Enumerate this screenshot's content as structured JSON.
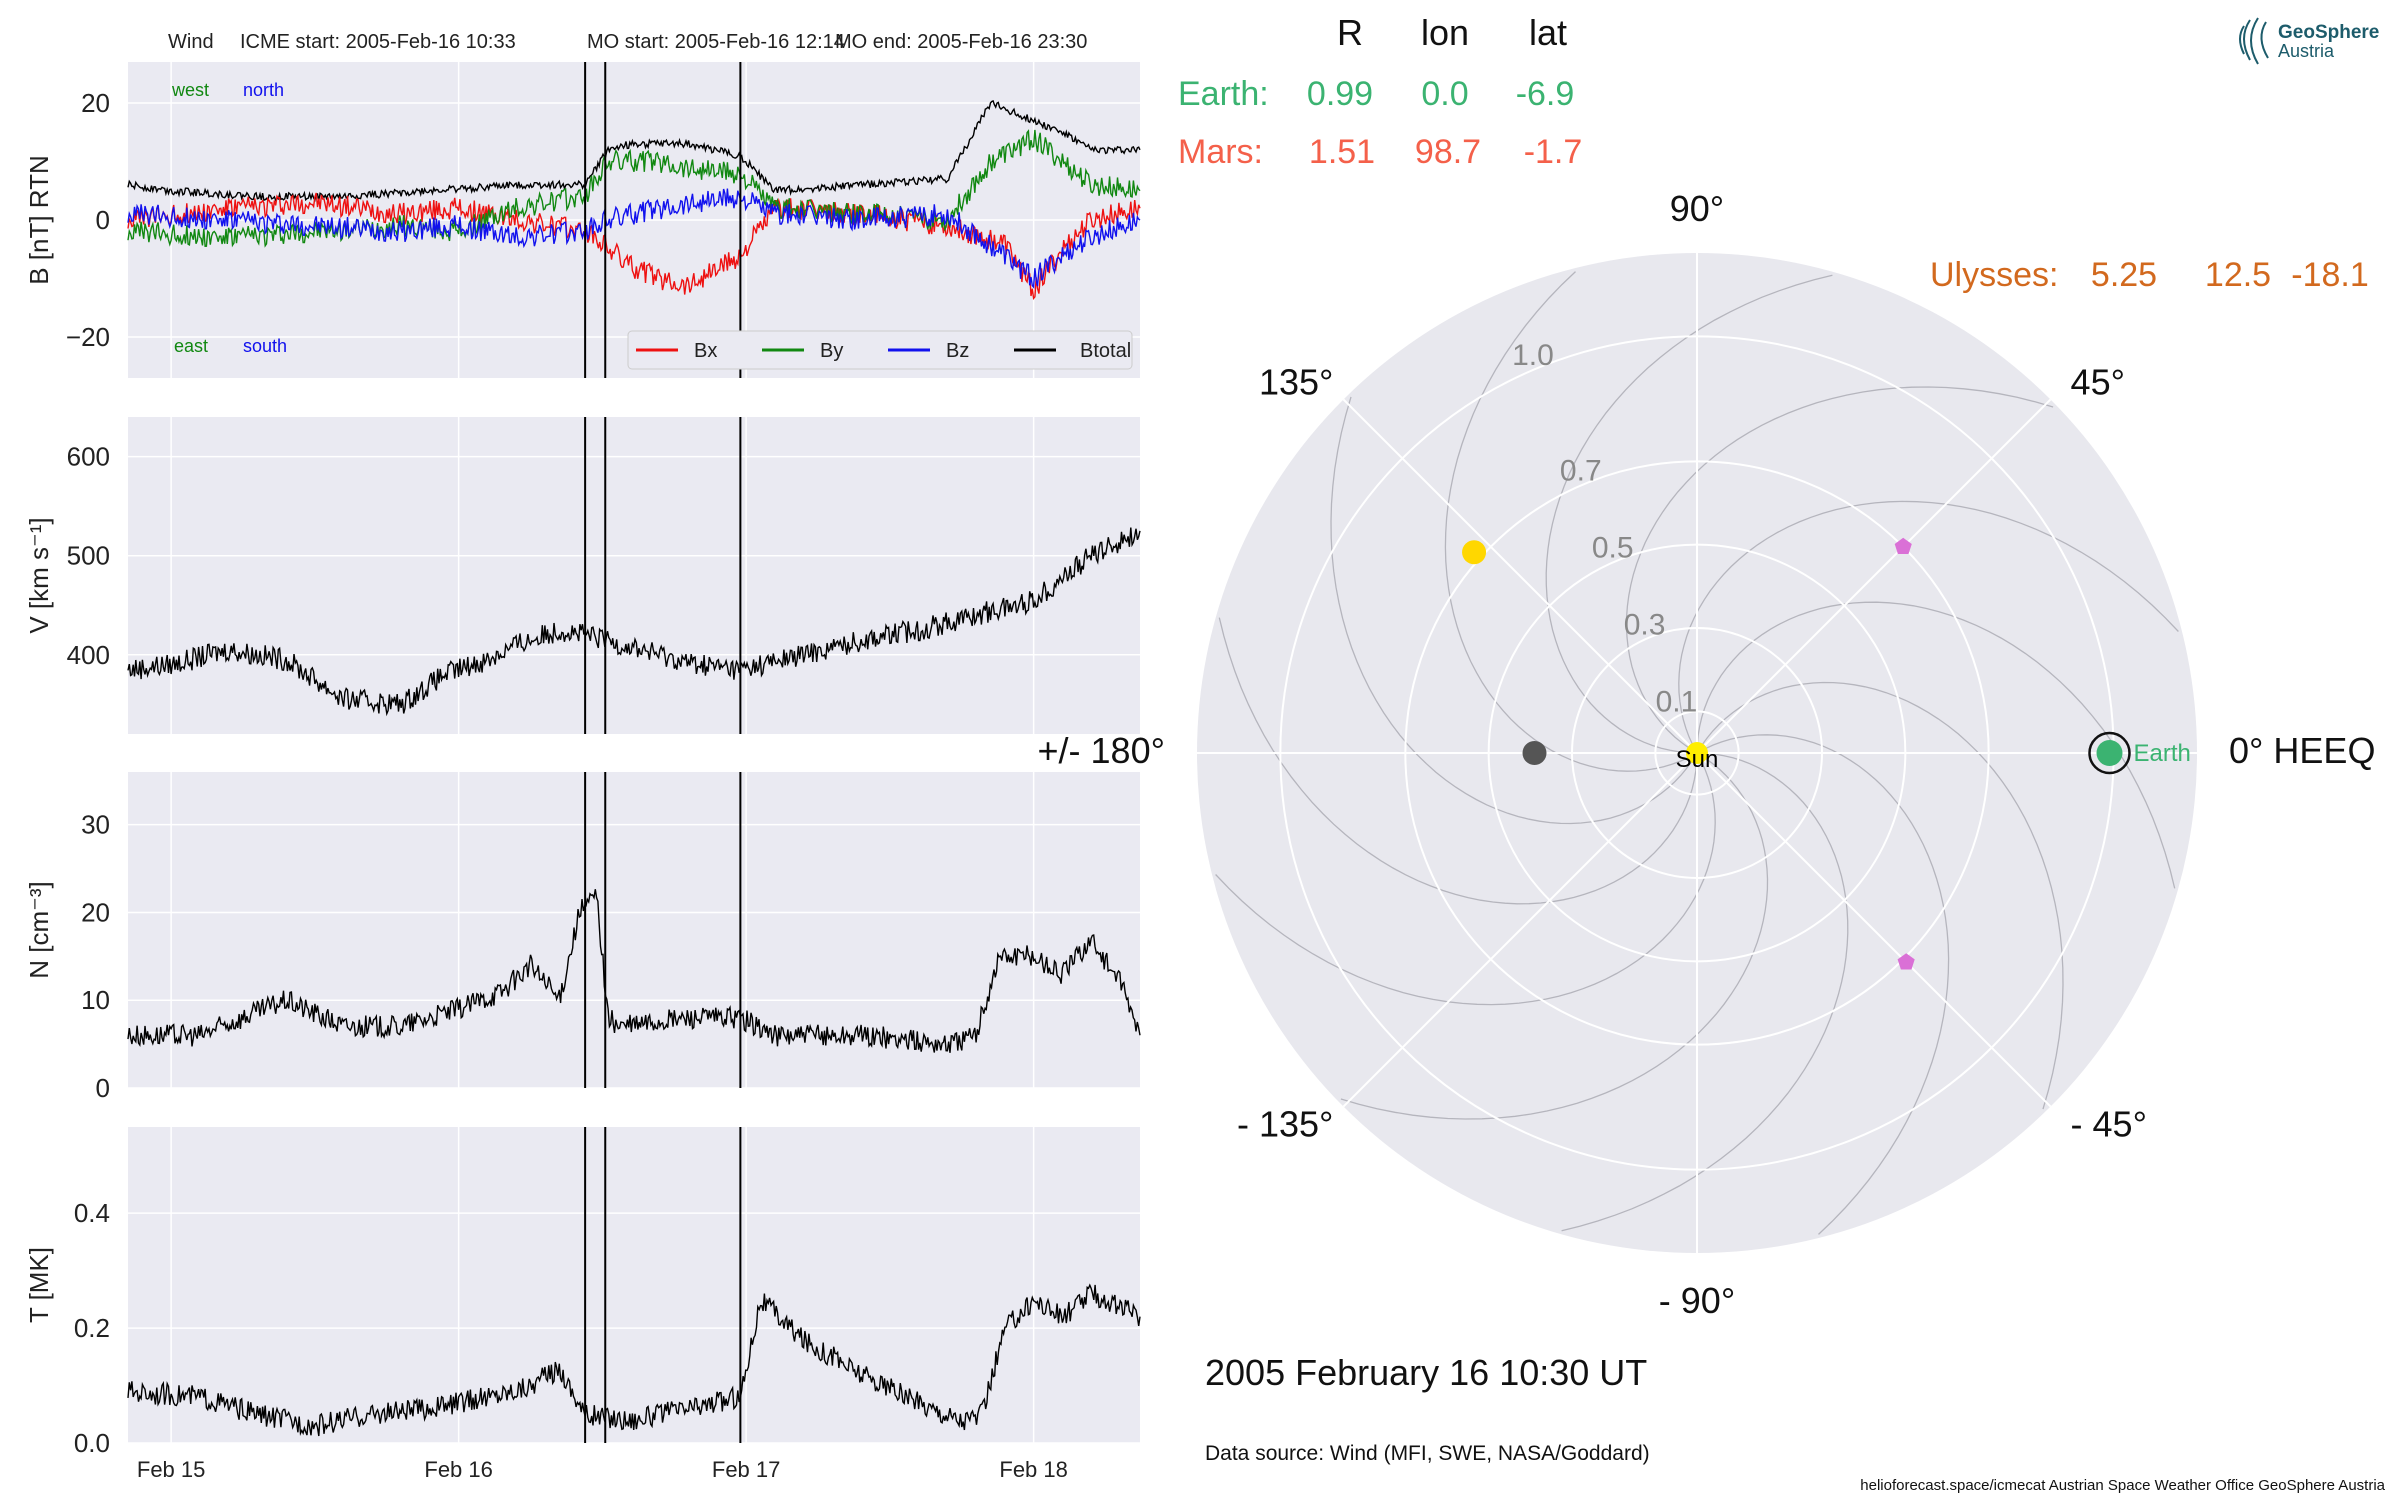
{
  "header": {
    "spacecraft": "Wind",
    "icme_start": "ICME start: 2005-Feb-16 10:33",
    "mo_start": "MO start: 2005-Feb-16 12:14",
    "mo_end": "MO end: 2005-Feb-16 23:30"
  },
  "logo": {
    "line1": "GeoSphere",
    "line2": "Austria"
  },
  "positions": {
    "columns": [
      "R",
      "lon",
      "lat"
    ],
    "rows": [
      {
        "name": "Earth:",
        "R": "0.99",
        "lon": "0.0",
        "lat": "-6.9",
        "color": "#3bb371"
      },
      {
        "name": "Mars:",
        "R": "1.51",
        "lon": "98.7",
        "lat": "-1.7",
        "color": "#f4604a"
      },
      {
        "name": "Ulysses:",
        "R": "5.25",
        "lon": "12.5",
        "lat": "-18.1",
        "color": "#d2691e"
      }
    ]
  },
  "polar": {
    "angle_labels": [
      "90°",
      "45°",
      "0° HEEQ",
      "- 45°",
      "- 90°",
      "- 135°",
      "+/- 180°",
      "135°"
    ],
    "radial_ticks": [
      "0.1",
      "0.3",
      "0.5",
      "0.7",
      "1.0"
    ],
    "sun_label": "Sun",
    "earth_label": "Earth",
    "datetime": "2005 February 16  10:30 UT",
    "data_source": "Data source: Wind (MFI, SWE, NASA/Goddard)",
    "objects": [
      {
        "name": "Sun",
        "lon_deg": 0,
        "r": 0.0,
        "color": "#ffee00"
      },
      {
        "name": "Earth",
        "lon_deg": 0,
        "r": 0.99,
        "color": "#3bb371"
      },
      {
        "name": "Venus",
        "lon_deg": 138,
        "r": 0.72,
        "color": "#ffd700"
      },
      {
        "name": "Mercury",
        "lon_deg": 180,
        "r": 0.39,
        "color": "#555555"
      },
      {
        "name": "spacecraft-a",
        "lon_deg": 45,
        "r": 0.7,
        "color": "#da70d6"
      },
      {
        "name": "spacecraft-b",
        "lon_deg": -45,
        "r": 0.71,
        "color": "#da70d6"
      }
    ]
  },
  "footer": "helioforecast.space/icmecat   Austrian Space Weather Office   GeoSphere Austria",
  "chart_data": [
    {
      "type": "line",
      "ylabel": "B [nT] RTN",
      "ylim": [
        -27,
        27
      ],
      "yticks": [
        -20,
        0,
        20
      ],
      "xlim": [
        -0.15,
        3.37
      ],
      "xticks": [
        "Feb 15",
        "Feb 16",
        "Feb 17",
        "Feb 18"
      ],
      "vlines": [
        1.44,
        1.51,
        1.98
      ],
      "corner_labels": {
        "west": "west",
        "north": "north",
        "east": "east",
        "south": "south"
      },
      "legend": [
        "Bx",
        "By",
        "Bz",
        "Btotal"
      ],
      "series": [
        {
          "name": "Btotal",
          "color": "#000000",
          "x": [
            -0.15,
            0.0,
            0.3,
            0.6,
            0.9,
            1.2,
            1.4,
            1.44,
            1.52,
            1.6,
            1.8,
            1.98,
            2.1,
            2.4,
            2.7,
            2.85,
            3.0,
            3.1,
            3.2,
            3.37
          ],
          "y": [
            6,
            5,
            4,
            4,
            5,
            6,
            6,
            6,
            12,
            13,
            13,
            11,
            5,
            6,
            7,
            20,
            17,
            15,
            12,
            12
          ]
        },
        {
          "name": "Bx",
          "color": "#ee1111",
          "x": [
            -0.15,
            0.2,
            0.5,
            0.8,
            1.0,
            1.2,
            1.44,
            1.5,
            1.6,
            1.7,
            1.8,
            1.98,
            2.1,
            2.4,
            2.7,
            2.9,
            3.0,
            3.1,
            3.2,
            3.37
          ],
          "y": [
            0,
            2,
            3,
            1,
            2,
            0,
            -2,
            -4,
            -8,
            -10,
            -11,
            -6,
            2,
            1,
            -1,
            -4,
            -12,
            -5,
            0,
            2
          ]
        },
        {
          "name": "By",
          "color": "#118811",
          "x": [
            -0.15,
            0.2,
            0.5,
            0.8,
            1.0,
            1.2,
            1.44,
            1.52,
            1.7,
            1.8,
            1.98,
            2.1,
            2.4,
            2.7,
            2.85,
            3.0,
            3.1,
            3.2,
            3.37
          ],
          "y": [
            -2,
            -3,
            -2,
            -1,
            -2,
            2,
            4,
            10,
            10,
            9,
            8,
            2,
            1,
            0,
            10,
            14,
            10,
            6,
            5
          ]
        },
        {
          "name": "Bz",
          "color": "#1111ee",
          "x": [
            -0.15,
            0.2,
            0.5,
            0.8,
            1.0,
            1.2,
            1.44,
            1.52,
            1.7,
            1.8,
            1.98,
            2.1,
            2.4,
            2.7,
            2.9,
            3.0,
            3.1,
            3.2,
            3.37
          ],
          "y": [
            1,
            0,
            -1,
            -2,
            -1,
            -3,
            -2,
            0,
            2,
            3,
            4,
            1,
            0,
            1,
            -6,
            -10,
            -6,
            -3,
            0
          ]
        }
      ]
    },
    {
      "type": "line",
      "ylabel": "V [km s⁻¹]",
      "ylim": [
        320,
        640
      ],
      "yticks": [
        400,
        500,
        600
      ],
      "xlim": [
        -0.15,
        3.37
      ],
      "vlines": [
        1.44,
        1.51,
        1.98
      ],
      "series": [
        {
          "name": "V",
          "color": "#000000",
          "x": [
            -0.15,
            0.0,
            0.2,
            0.4,
            0.5,
            0.6,
            0.8,
            0.95,
            1.1,
            1.2,
            1.35,
            1.44,
            1.6,
            1.8,
            1.98,
            2.2,
            2.45,
            2.6,
            2.8,
            3.0,
            3.2,
            3.37
          ],
          "y": [
            385,
            390,
            405,
            395,
            375,
            355,
            350,
            380,
            395,
            410,
            425,
            420,
            408,
            392,
            385,
            400,
            418,
            425,
            440,
            455,
            500,
            525
          ]
        }
      ]
    },
    {
      "type": "line",
      "ylabel": "N [cm⁻³]",
      "ylim": [
        0,
        36
      ],
      "yticks": [
        0,
        10,
        20,
        30
      ],
      "xlim": [
        -0.15,
        3.37
      ],
      "vlines": [
        1.44,
        1.51,
        1.98
      ],
      "series": [
        {
          "name": "N",
          "color": "#000000",
          "x": [
            -0.15,
            0.1,
            0.25,
            0.4,
            0.6,
            0.8,
            1.0,
            1.15,
            1.25,
            1.35,
            1.42,
            1.48,
            1.52,
            1.56,
            1.8,
            1.98,
            2.1,
            2.4,
            2.7,
            2.8,
            2.88,
            3.0,
            3.1,
            3.2,
            3.3,
            3.37
          ],
          "y": [
            6,
            6,
            8,
            10,
            7,
            7,
            9,
            11,
            14,
            10,
            20,
            22,
            8,
            7,
            8,
            8,
            6,
            6,
            5,
            6,
            15,
            15,
            13,
            17,
            12,
            6
          ]
        }
      ]
    },
    {
      "type": "line",
      "ylabel": "T [MK]",
      "ylim": [
        0,
        0.55
      ],
      "yticks": [
        0.0,
        0.2,
        0.4
      ],
      "xlim": [
        -0.15,
        3.37
      ],
      "xticks": [
        "Feb 15",
        "Feb 16",
        "Feb 17",
        "Feb 18"
      ],
      "vlines": [
        1.44,
        1.51,
        1.98
      ],
      "series": [
        {
          "name": "T",
          "color": "#000000",
          "x": [
            -0.15,
            0.1,
            0.3,
            0.5,
            0.7,
            0.9,
            1.1,
            1.25,
            1.35,
            1.44,
            1.6,
            1.8,
            1.98,
            2.05,
            2.2,
            2.4,
            2.6,
            2.75,
            2.82,
            2.9,
            3.0,
            3.1,
            3.2,
            3.37
          ],
          "y": [
            0.09,
            0.08,
            0.05,
            0.03,
            0.05,
            0.06,
            0.08,
            0.1,
            0.13,
            0.05,
            0.04,
            0.06,
            0.08,
            0.25,
            0.18,
            0.12,
            0.07,
            0.04,
            0.05,
            0.2,
            0.25,
            0.22,
            0.26,
            0.22
          ]
        }
      ]
    }
  ]
}
